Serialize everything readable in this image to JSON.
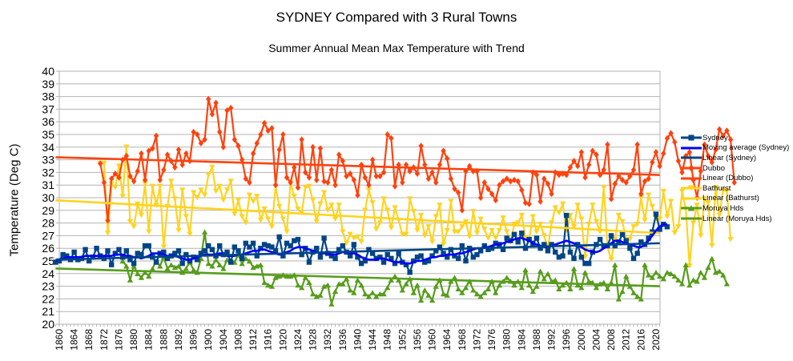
{
  "chart_data": {
    "type": "line",
    "title": "SYDNEY Compared with 3 Rural Towns",
    "subtitle": "Summer Annual Mean Max Temperature with Trend",
    "xlabel": "",
    "ylabel": "Temperature (Deg C)",
    "ylim": [
      20,
      40
    ],
    "yticks": [
      20,
      21,
      22,
      23,
      24,
      25,
      26,
      27,
      28,
      29,
      30,
      31,
      32,
      33,
      34,
      35,
      36,
      37,
      38,
      39,
      40
    ],
    "xlim": [
      1860,
      2021
    ],
    "xticks": [
      1860,
      1864,
      1868,
      1872,
      1876,
      1880,
      1884,
      1888,
      1892,
      1896,
      1900,
      1904,
      1908,
      1912,
      1916,
      1920,
      1924,
      1928,
      1932,
      1936,
      1940,
      1944,
      1948,
      1952,
      1956,
      1960,
      1964,
      1968,
      1972,
      1976,
      1980,
      1984,
      1988,
      1992,
      1996,
      2000,
      2004,
      2008,
      2012,
      2016,
      2020
    ],
    "grid": true,
    "legend_position": "right",
    "series": [
      {
        "name": "Sydney",
        "color": "#004586",
        "marker": "square",
        "start_year": 1859,
        "values": [
          24.9,
          25.0,
          25.5,
          25.4,
          25.1,
          25.7,
          25.1,
          25.2,
          25.9,
          25.0,
          25.3,
          26.0,
          25.4,
          25.2,
          25.8,
          24.7,
          25.6,
          25.9,
          25.3,
          25.8,
          25.1,
          24.8,
          25.6,
          25.5,
          26.2,
          26.2,
          25.3,
          24.9,
          25.6,
          25.7,
          25.2,
          25.4,
          25.6,
          25.8,
          24.8,
          25.5,
          25.0,
          25.3,
          25.1,
          25.6,
          25.8,
          26.2,
          25.9,
          25.4,
          26.2,
          25.5,
          25.7,
          24.9,
          26.1,
          25.8,
          25.2,
          26.4,
          26.1,
          26.4,
          25.4,
          26.0,
          26.3,
          26.2,
          26.1,
          25.8,
          26.9,
          25.4,
          26.4,
          26.2,
          26.6,
          26.7,
          25.5,
          26.0,
          24.9,
          25.7,
          26.0,
          25.3,
          26.8,
          25.6,
          25.4,
          25.2,
          25.9,
          26.2,
          25.7,
          25.4,
          26.3,
          25.3,
          24.8,
          25.0,
          25.9,
          25.6,
          25.2,
          25.3,
          24.9,
          25.5,
          25.2,
          24.8,
          25.6,
          24.9,
          24.7,
          24.1,
          25.0,
          25.3,
          25.4,
          24.9,
          25.0,
          25.4,
          25.8,
          26.1,
          25.6,
          25.3,
          25.9,
          25.4,
          25.2,
          26.2,
          25.0,
          26.0,
          25.3,
          25.5,
          25.8,
          26.2,
          25.9,
          26.0,
          26.4,
          26.3,
          25.9,
          26.8,
          26.6,
          27.1,
          26.5,
          27.2,
          26.0,
          26.7,
          26.4,
          26.8,
          26.0,
          26.3,
          25.8,
          26.3,
          25.7,
          25.3,
          25.4,
          28.6,
          25.7,
          25.2,
          26.3,
          25.3,
          24.8,
          24.8,
          25.7,
          26.3,
          26.7,
          26.2,
          26.2,
          27.0,
          26.2,
          26.5,
          27.1,
          26.6,
          26.0,
          25.2,
          25.6,
          26.5,
          26.3,
          26.8,
          27.3,
          28.7,
          27.5,
          27.9,
          27.7
        ]
      },
      {
        "name": "Moving average (Sydney)",
        "color": "#0000ff",
        "marker": "none",
        "start_year": 1859,
        "values": [
          25.0,
          25.1,
          25.2,
          25.3,
          25.3,
          25.3,
          25.3,
          25.3,
          25.4,
          25.4,
          25.4,
          25.4,
          25.4,
          25.4,
          25.4,
          25.4,
          25.5,
          25.5,
          25.5,
          25.4,
          25.4,
          25.3,
          25.3,
          25.2,
          25.3,
          25.4,
          25.6,
          25.6,
          25.6,
          25.5,
          25.4,
          25.4,
          25.4,
          25.3,
          25.2,
          25.1,
          25.1,
          25.2,
          25.3,
          25.4,
          25.5,
          25.5,
          25.5,
          25.5,
          25.6,
          25.5,
          25.4,
          25.4,
          25.4,
          25.5,
          25.5,
          25.6,
          25.7,
          25.8,
          25.8,
          25.9,
          25.9,
          25.8,
          25.7,
          25.6,
          25.5,
          25.6,
          25.7,
          25.8,
          26.0,
          26.1,
          26.1,
          26.0,
          25.9,
          25.8,
          25.7,
          25.6,
          25.6,
          25.6,
          25.5,
          25.5,
          25.6,
          25.7,
          25.7,
          25.6,
          25.6,
          25.5,
          25.3,
          25.2,
          25.1,
          25.1,
          25.1,
          25.2,
          25.2,
          25.1,
          25.0,
          24.9,
          24.9,
          24.9,
          24.8,
          24.8,
          24.9,
          25.0,
          25.0,
          25.1,
          25.2,
          25.3,
          25.3,
          25.4,
          25.4,
          25.5,
          25.5,
          25.5,
          25.6,
          25.6,
          25.7,
          25.8,
          25.9,
          26.0,
          26.0,
          26.1,
          26.1,
          26.2,
          26.3,
          26.3,
          26.4,
          26.5,
          26.6,
          26.7,
          26.8,
          26.8,
          26.7,
          26.6,
          26.4,
          26.3,
          26.2,
          26.1,
          26.1,
          26.2,
          26.3,
          26.4,
          26.5,
          26.6,
          26.5,
          26.4,
          26.2,
          26.1,
          25.9,
          25.8,
          25.7,
          25.7,
          25.8,
          26.0,
          26.2,
          26.4,
          26.6,
          26.6,
          26.5,
          26.4,
          26.3,
          26.2,
          26.1,
          26.1,
          26.3,
          26.6,
          27.0,
          27.4,
          27.7,
          27.9,
          27.9
        ]
      },
      {
        "name": "Linear (Sydney)",
        "color": "#004586",
        "marker": "none",
        "trend": true,
        "endpoints": [
          [
            1859,
            25.1
          ],
          [
            2021,
            26.4
          ]
        ]
      },
      {
        "name": "Dubbo",
        "color": "#ff420e",
        "marker": "diamond",
        "start_year": 1871,
        "values": [
          32.7,
          31.2,
          28.2,
          31.5,
          31.9,
          31.6,
          33.0,
          33.3,
          31.7,
          31.3,
          32.1,
          33.5,
          31.4,
          33.7,
          33.9,
          34.9,
          31.4,
          32.2,
          33.4,
          32.9,
          32.4,
          33.8,
          32.6,
          33.5,
          32.9,
          35.2,
          35.0,
          34.3,
          34.6,
          37.8,
          36.6,
          37.5,
          35.2,
          34.0,
          36.9,
          37.1,
          34.6,
          34.1,
          33.0,
          31.5,
          31.2,
          33.5,
          34.3,
          35.0,
          35.9,
          35.3,
          35.5,
          31.0,
          33.8,
          35.0,
          31.6,
          31.2,
          32.4,
          30.8,
          34.6,
          32.0,
          31.6,
          34.0,
          31.4,
          33.9,
          31.3,
          31.2,
          32.2,
          31.0,
          33.4,
          32.9,
          31.7,
          31.9,
          31.4,
          30.2,
          32.6,
          31.6,
          31.0,
          33.0,
          31.7,
          31.7,
          32.0,
          35.0,
          34.7,
          30.9,
          32.6,
          31.2,
          32.6,
          32.1,
          32.4,
          31.9,
          34.1,
          32.6,
          31.5,
          32.0,
          31.2,
          32.6,
          33.7,
          33.1,
          31.5,
          30.7,
          30.4,
          29.0,
          32.1,
          32.5,
          32.1,
          32.1,
          30.0,
          31.2,
          30.7,
          30.3,
          29.8,
          31.0,
          31.3,
          31.5,
          31.3,
          31.4,
          31.3,
          30.6,
          29.6,
          29.5,
          32.0,
          31.8,
          29.7,
          31.5,
          31.1,
          30.3,
          32.0,
          31.8,
          31.9,
          31.8,
          32.4,
          32.9,
          32.5,
          33.6,
          31.6,
          32.6,
          33.7,
          33.4,
          31.8,
          32.2,
          34.2,
          29.9,
          31.1,
          31.7,
          31.4,
          31.2,
          31.7,
          32.2,
          34.2,
          30.3,
          31.3,
          31.5,
          32.8,
          33.6,
          32.5,
          33.5,
          34.7,
          35.1,
          34.4,
          32.9,
          32.0,
          33.3,
          33.6,
          31.4,
          30.0,
          32.1,
          34.2,
          33.3,
          32.8,
          33.8,
          35.4,
          34.9,
          35.3,
          34.6,
          31.2
        ]
      },
      {
        "name": "Linear (Dubbo)",
        "color": "#ff420e",
        "marker": "none",
        "trend": true,
        "endpoints": [
          [
            1859,
            33.2
          ],
          [
            2021,
            31.8
          ]
        ]
      },
      {
        "name": "Bathurst",
        "color": "#ffd320",
        "marker": "triangle-down",
        "start_year": 1871,
        "values": [
          32.7,
          32.7,
          27.2,
          31.1,
          30.8,
          32.5,
          30.1,
          34.0,
          28.1,
          27.7,
          29.5,
          28.6,
          31.1,
          27.3,
          30.9,
          29.4,
          30.9,
          26.1,
          29.3,
          31.3,
          29.9,
          27.4,
          30.6,
          28.5,
          27.1,
          30.4,
          30.0,
          30.6,
          30.2,
          31.8,
          32.4,
          30.5,
          30.9,
          29.8,
          30.6,
          31.3,
          28.7,
          29.8,
          28.5,
          28.0,
          30.2,
          29.7,
          30.1,
          28.2,
          29.1,
          28.3,
          27.7,
          30.9,
          29.3,
          28.3,
          27.3,
          31.2,
          30.1,
          29.1,
          28.8,
          30.8,
          30.9,
          29.8,
          28.1,
          29.5,
          30.4,
          29.0,
          29.4,
          28.3,
          29.4,
          27.3,
          26.4,
          27.1,
          26.8,
          26.9,
          26.5,
          29.0,
          30.6,
          29.6,
          27.5,
          28.0,
          29.9,
          29.0,
          27.6,
          29.2,
          28.2,
          27.1,
          27.1,
          29.9,
          28.9,
          27.4,
          28.6,
          27.0,
          27.7,
          26.5,
          28.5,
          29.4,
          26.3,
          27.4,
          29.7,
          27.3,
          27.3,
          27.7,
          28.1,
          26.9,
          28.9,
          27.2,
          28.3,
          27.5,
          26.8,
          27.4,
          26.8,
          27.4,
          28.4,
          27.3,
          26.5,
          27.9,
          28.0,
          28.6,
          26.8,
          26.7,
          28.5,
          27.3,
          27.9,
          27.0,
          26.0,
          28.0,
          29.2,
          28.8,
          29.5,
          27.4,
          28.6,
          27.7,
          29.4,
          28.3,
          25.3,
          27.9,
          29.4,
          28.1,
          27.3,
          30.8,
          26.1,
          25.1,
          26.7,
          28.6,
          28.1,
          26.7,
          26.7,
          27.7,
          27.9,
          30.0,
          28.2,
          30.2,
          29.3,
          28.3,
          28.3,
          30.5,
          28.5,
          29.7,
          27.2,
          27.7,
          30.5,
          29.1,
          24.6,
          28.0,
          29.4,
          27.0,
          29.9,
          29.6,
          26.2,
          30.8,
          28.6,
          30.6,
          30.5,
          26.7
        ]
      },
      {
        "name": "Linear (Bathurst)",
        "color": "#ffd320",
        "marker": "none",
        "trend": true,
        "endpoints": [
          [
            1859,
            29.8
          ],
          [
            2021,
            27.2
          ]
        ]
      },
      {
        "name": "Moruya Hds",
        "color": "#579d1c",
        "marker": "triangle-up",
        "start_year": 1877,
        "values": [
          25.0,
          24.6,
          23.5,
          24.6,
          24.0,
          23.7,
          24.1,
          23.8,
          24.4,
          25.0,
          24.6,
          25.3,
          24.4,
          24.7,
          24.5,
          24.6,
          24.1,
          24.4,
          24.9,
          24.3,
          24.1,
          25.2,
          27.3,
          24.8,
          24.6,
          25.1,
          24.7,
          24.4,
          25.1,
          25.0,
          24.9,
          25.5,
          24.8,
          25.2,
          25.0,
          24.5,
          24.6,
          24.7,
          23.3,
          23.1,
          23.0,
          23.7,
          23.8,
          23.9,
          23.8,
          23.8,
          23.9,
          23.1,
          22.9,
          23.7,
          23.3,
          22.4,
          22.2,
          22.3,
          23.0,
          23.1,
          21.6,
          22.6,
          23.2,
          23.2,
          23.6,
          22.7,
          22.5,
          23.5,
          23.1,
          22.4,
          22.2,
          22.5,
          22.2,
          22.4,
          22.4,
          22.9,
          23.5,
          23.8,
          23.5,
          22.7,
          23.2,
          23.6,
          22.5,
          23.1,
          21.9,
          22.7,
          22.3,
          21.9,
          23.0,
          23.5,
          22.4,
          22.3,
          23.4,
          23.7,
          22.8,
          22.5,
          22.9,
          23.4,
          22.7,
          22.4,
          22.2,
          22.5,
          22.8,
          23.4,
          22.5,
          23.1,
          23.4,
          23.7,
          23.4,
          23.1,
          23.4,
          22.9,
          24.3,
          23.1,
          22.6,
          23.0,
          24.2,
          23.6,
          24.0,
          23.4,
          23.5,
          22.8,
          23.1,
          23.3,
          22.8,
          24.4,
          23.1,
          22.9,
          24.1,
          23.4,
          23.3,
          22.9,
          23.2,
          23.3,
          22.8,
          23.3,
          24.7,
          22.0,
          22.6,
          23.8,
          23.0,
          22.5,
          22.2,
          22.0,
          24.7,
          23.9,
          23.7,
          24.1,
          23.8,
          23.6,
          24.1,
          24.0,
          23.8,
          23.5,
          23.2,
          24.7,
          23.1,
          23.5,
          23.4,
          24.1,
          23.7,
          24.5,
          25.2,
          24.1,
          24.2,
          23.9,
          23.2
        ]
      },
      {
        "name": "Linear (Moruya Hds)",
        "color": "#579d1c",
        "marker": "none",
        "trend": true,
        "endpoints": [
          [
            1859,
            24.4
          ],
          [
            2021,
            23.0
          ]
        ]
      }
    ]
  },
  "legend": {
    "items": [
      {
        "label": "Sydney",
        "color": "#004586",
        "marker": "square"
      },
      {
        "label": "Moving average (Sydney)",
        "color": "#0000ff",
        "marker": "none"
      },
      {
        "label": "Linear (Sydney)",
        "color": "#004586",
        "marker": "none"
      },
      {
        "label": "Dubbo",
        "color": "#ff420e",
        "marker": "diamond"
      },
      {
        "label": "Linear (Dubbo)",
        "color": "#ff420e",
        "marker": "none"
      },
      {
        "label": "Bathurst",
        "color": "#ffd320",
        "marker": "triangle-down"
      },
      {
        "label": "Linear (Bathurst)",
        "color": "#ffd320",
        "marker": "none"
      },
      {
        "label": "Moruya Hds",
        "color": "#579d1c",
        "marker": "triangle-up"
      },
      {
        "label": "Linear (Moruya Hds)",
        "color": "#579d1c",
        "marker": "none"
      }
    ]
  }
}
